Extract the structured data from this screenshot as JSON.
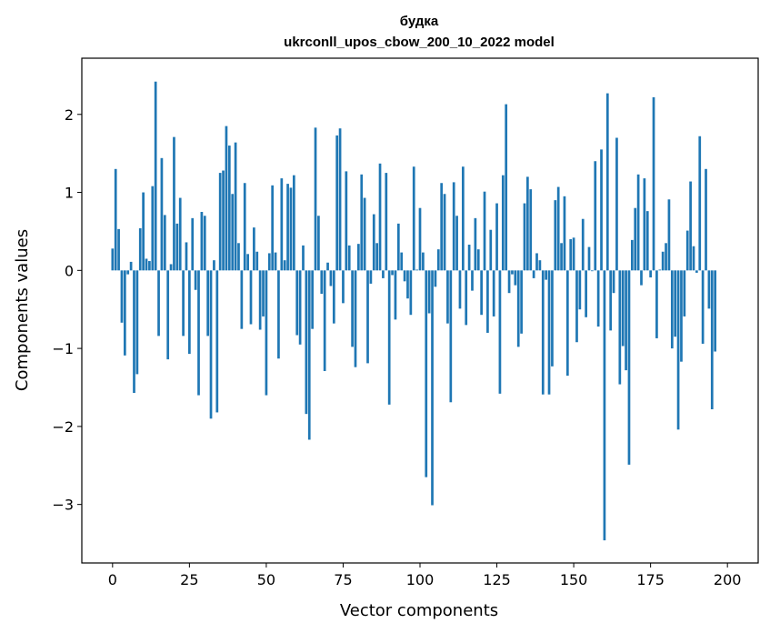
{
  "chart_data": {
    "type": "bar",
    "title": "будка",
    "subtitle": "ukrconll_upos_cbow_200_10_2022 model",
    "xlabel": "Vector components",
    "ylabel": "Components values",
    "xlim": [
      -10,
      210
    ],
    "ylim": [
      -3.75,
      2.72
    ],
    "xticks": [
      0,
      25,
      50,
      75,
      100,
      125,
      150,
      175,
      200
    ],
    "yticks": [
      -3,
      -2,
      -1,
      0,
      1,
      2
    ],
    "ytick_labels": [
      "−3",
      "−2",
      "−1",
      "0",
      "1",
      "2"
    ],
    "bar_color": "#1f77b4",
    "grid": false,
    "values": [
      0.28,
      1.3,
      0.53,
      -0.67,
      -1.09,
      -0.05,
      0.11,
      -1.57,
      -1.33,
      0.54,
      1.0,
      0.15,
      0.12,
      1.08,
      2.42,
      -0.84,
      1.44,
      0.71,
      -1.14,
      0.08,
      1.71,
      0.6,
      0.93,
      -0.84,
      0.36,
      -1.07,
      0.67,
      -0.25,
      -1.6,
      0.75,
      0.7,
      -0.84,
      -1.9,
      0.13,
      -1.82,
      1.25,
      1.28,
      1.85,
      1.6,
      0.98,
      1.64,
      0.35,
      -0.75,
      1.12,
      0.21,
      -0.69,
      0.55,
      0.24,
      -0.76,
      -0.59,
      -1.6,
      0.22,
      1.09,
      0.23,
      -1.13,
      1.18,
      0.13,
      1.11,
      1.06,
      1.22,
      -0.83,
      -0.95,
      0.32,
      -1.84,
      -2.17,
      -0.75,
      1.83,
      0.7,
      -0.3,
      -1.29,
      0.1,
      -0.2,
      -0.68,
      1.73,
      1.82,
      -0.42,
      1.27,
      0.32,
      -0.98,
      -1.24,
      0.34,
      1.23,
      0.93,
      -1.19,
      -0.17,
      0.72,
      0.35,
      1.37,
      -0.1,
      1.25,
      -1.72,
      -0.06,
      -0.63,
      0.6,
      0.23,
      -0.14,
      -0.36,
      -0.57,
      1.33,
      0.01,
      0.8,
      0.23,
      -2.65,
      -0.55,
      -3.01,
      -0.21,
      0.27,
      1.12,
      0.98,
      -0.68,
      -1.69,
      1.13,
      0.7,
      -0.49,
      1.33,
      -0.7,
      0.33,
      -0.26,
      0.67,
      0.27,
      -0.57,
      1.01,
      -0.8,
      0.52,
      -0.59,
      0.86,
      -1.58,
      1.22,
      2.13,
      -0.29,
      -0.05,
      -0.19,
      -0.98,
      -0.81,
      0.86,
      1.2,
      1.04,
      -0.1,
      0.22,
      0.13,
      -1.59,
      -0.12,
      -1.59,
      -1.23,
      0.9,
      1.07,
      0.35,
      0.95,
      -1.35,
      0.4,
      0.42,
      -0.92,
      -0.5,
      0.66,
      -0.6,
      0.3,
      -0.01,
      1.4,
      -0.72,
      1.55,
      -3.46,
      2.27,
      -0.77,
      -0.29,
      1.7,
      -1.46,
      -0.97,
      -1.28,
      -2.49,
      0.39,
      0.8,
      1.23,
      -0.19,
      1.18,
      0.76,
      -0.09,
      2.22,
      -0.87,
      0.01,
      0.24,
      0.35,
      0.91,
      -1.0,
      -0.85,
      -2.04,
      -1.17,
      -0.59,
      0.51,
      1.14,
      0.31,
      -0.03,
      1.72,
      -0.94,
      1.3,
      -0.49,
      -1.78,
      -1.04
    ]
  }
}
